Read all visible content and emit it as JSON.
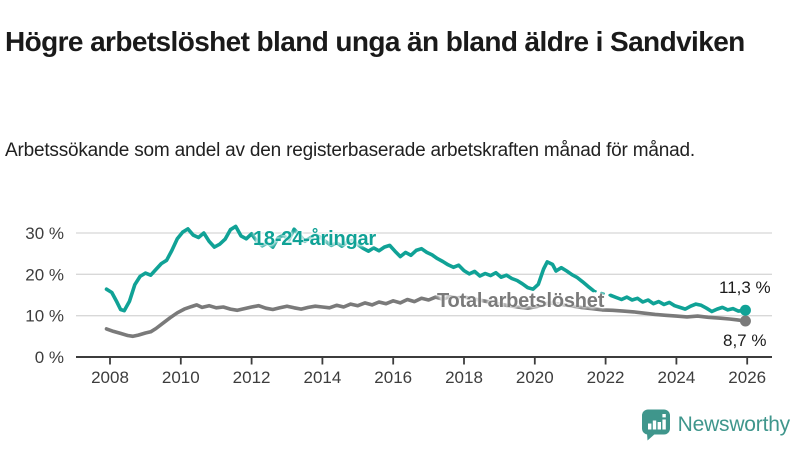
{
  "header": {
    "title": "Högre arbetslöshet bland unga än bland äldre i Sandviken",
    "subtitle": "Arbetssökande som andel av den registerbaserade arbetskraften månad för månad."
  },
  "chart_data": {
    "type": "line",
    "title": "Högre arbetslöshet bland unga än bland äldre i Sandviken",
    "subtitle": "Arbetssökande som andel av den registerbaserade arbetskraften månad för månad.",
    "xlabel": "",
    "ylabel": "",
    "grid": true,
    "legend_position": "inline-labels",
    "x_domain": [
      2007.9,
      2026.45
    ],
    "y_domain": [
      0,
      33
    ],
    "y_ticks": [
      {
        "value": 0,
        "label": "0 %"
      },
      {
        "value": 10,
        "label": "10 %"
      },
      {
        "value": 20,
        "label": "20 %"
      },
      {
        "value": 30,
        "label": "30 %"
      }
    ],
    "x_ticks": [
      {
        "value": 2008,
        "label": "2008"
      },
      {
        "value": 2010,
        "label": "2010"
      },
      {
        "value": 2012,
        "label": "2012"
      },
      {
        "value": 2014,
        "label": "2014"
      },
      {
        "value": 2016,
        "label": "2016"
      },
      {
        "value": 2018,
        "label": "2018"
      },
      {
        "value": 2020,
        "label": "2020"
      },
      {
        "value": 2022,
        "label": "2022"
      },
      {
        "value": 2024,
        "label": "2024"
      },
      {
        "value": 2026,
        "label": "2026"
      }
    ],
    "colors": {
      "youth": "#10a296",
      "total": "#7a7a7a",
      "gridline": "#d8d8d8",
      "axis": "#3c3c3c",
      "tick_label": "#3d3d3d",
      "value_label": "#1b1b1b"
    },
    "series": [
      {
        "id": "youth",
        "name": "18-24-åringar",
        "color": "#10a296",
        "end_value": 11.3,
        "end_value_label": "11,3 %",
        "segments": [
          {
            "style": "solid",
            "points": [
              [
                2007.9,
                16.4
              ],
              [
                2008.05,
                15.6
              ],
              [
                2008.2,
                13.2
              ],
              [
                2008.3,
                11.5
              ],
              [
                2008.4,
                11.2
              ],
              [
                2008.55,
                13.5
              ],
              [
                2008.7,
                17.5
              ],
              [
                2008.85,
                19.5
              ],
              [
                2009.0,
                20.3
              ],
              [
                2009.15,
                19.8
              ],
              [
                2009.3,
                21.2
              ],
              [
                2009.45,
                22.6
              ],
              [
                2009.6,
                23.4
              ],
              [
                2009.75,
                25.8
              ],
              [
                2009.9,
                28.6
              ],
              [
                2010.05,
                30.2
              ],
              [
                2010.2,
                31.0
              ],
              [
                2010.35,
                29.5
              ],
              [
                2010.5,
                28.9
              ],
              [
                2010.65,
                30.0
              ],
              [
                2010.8,
                28.0
              ],
              [
                2010.95,
                26.6
              ],
              [
                2011.1,
                27.3
              ],
              [
                2011.25,
                28.5
              ],
              [
                2011.4,
                30.8
              ],
              [
                2011.55,
                31.6
              ],
              [
                2011.7,
                29.3
              ],
              [
                2011.85,
                28.6
              ],
              [
                2012.0,
                29.8
              ],
              [
                2012.15,
                28.0
              ],
              [
                2012.3,
                26.9
              ],
              [
                2012.45,
                27.6
              ],
              [
                2012.6,
                26.6
              ],
              [
                2012.75,
                28.8
              ],
              [
                2012.9,
                29.5
              ],
              [
                2013.05,
                28.3
              ],
              [
                2013.2,
                30.9
              ],
              [
                2013.35,
                29.6
              ],
              [
                2013.5,
                28.0
              ],
              [
                2013.65,
                28.8
              ],
              [
                2013.8,
                29.6
              ],
              [
                2013.95,
                28.9
              ],
              [
                2014.1,
                27.9
              ],
              [
                2014.25,
                27.0
              ],
              [
                2014.4,
                27.6
              ],
              [
                2014.55,
                26.8
              ],
              [
                2014.7,
                27.8
              ],
              [
                2014.85,
                28.2
              ],
              [
                2015.0,
                27.2
              ],
              [
                2015.15,
                26.3
              ],
              [
                2015.3,
                25.6
              ],
              [
                2015.45,
                26.4
              ],
              [
                2015.6,
                25.7
              ],
              [
                2015.75,
                26.6
              ],
              [
                2015.9,
                27.0
              ],
              [
                2016.05,
                25.6
              ],
              [
                2016.2,
                24.3
              ],
              [
                2016.35,
                25.3
              ],
              [
                2016.5,
                24.6
              ],
              [
                2016.65,
                25.8
              ],
              [
                2016.8,
                26.2
              ],
              [
                2016.95,
                25.3
              ],
              [
                2017.1,
                24.7
              ],
              [
                2017.25,
                23.8
              ],
              [
                2017.4,
                23.1
              ],
              [
                2017.55,
                22.3
              ],
              [
                2017.7,
                21.7
              ],
              [
                2017.85,
                22.2
              ],
              [
                2018.0,
                20.9
              ],
              [
                2018.15,
                20.1
              ],
              [
                2018.3,
                20.7
              ],
              [
                2018.45,
                19.6
              ],
              [
                2018.6,
                20.2
              ],
              [
                2018.75,
                19.7
              ],
              [
                2018.9,
                20.4
              ],
              [
                2019.05,
                19.3
              ],
              [
                2019.2,
                19.8
              ],
              [
                2019.35,
                19.0
              ],
              [
                2019.5,
                18.5
              ],
              [
                2019.65,
                17.7
              ],
              [
                2019.8,
                16.8
              ],
              [
                2019.95,
                16.4
              ],
              [
                2020.1,
                17.6
              ],
              [
                2020.25,
                21.3
              ],
              [
                2020.35,
                23.0
              ],
              [
                2020.5,
                22.4
              ],
              [
                2020.6,
                20.8
              ],
              [
                2020.75,
                21.6
              ],
              [
                2020.9,
                20.8
              ],
              [
                2021.05,
                19.9
              ],
              [
                2021.2,
                19.2
              ],
              [
                2021.35,
                18.2
              ],
              [
                2021.5,
                17.1
              ],
              [
                2021.65,
                16.1
              ]
            ]
          },
          {
            "style": "dashed",
            "points": [
              [
                2021.65,
                16.1
              ],
              [
                2021.8,
                15.7
              ],
              [
                2022.0,
                15.2
              ],
              [
                2022.15,
                14.9
              ]
            ]
          },
          {
            "style": "solid",
            "points": [
              [
                2022.15,
                14.9
              ],
              [
                2022.3,
                14.4
              ],
              [
                2022.45,
                13.9
              ],
              [
                2022.6,
                14.5
              ],
              [
                2022.75,
                13.8
              ],
              [
                2022.9,
                14.2
              ],
              [
                2023.05,
                13.3
              ],
              [
                2023.2,
                13.8
              ],
              [
                2023.35,
                12.9
              ],
              [
                2023.5,
                13.4
              ],
              [
                2023.65,
                12.7
              ],
              [
                2023.8,
                13.2
              ],
              [
                2023.95,
                12.4
              ],
              [
                2024.1,
                12.0
              ],
              [
                2024.25,
                11.6
              ],
              [
                2024.4,
                12.3
              ],
              [
                2024.55,
                12.8
              ],
              [
                2024.7,
                12.5
              ],
              [
                2024.85,
                11.8
              ],
              [
                2025.0,
                11.0
              ],
              [
                2025.15,
                11.6
              ],
              [
                2025.3,
                12.0
              ],
              [
                2025.45,
                11.4
              ],
              [
                2025.6,
                11.7
              ],
              [
                2025.75,
                11.1
              ],
              [
                2025.95,
                11.3
              ]
            ]
          }
        ]
      },
      {
        "id": "total",
        "name": "Total arbetslöshet",
        "color": "#7a7a7a",
        "end_value": 8.7,
        "end_value_label": "8,7 %",
        "segments": [
          {
            "style": "solid",
            "points": [
              [
                2007.9,
                6.8
              ],
              [
                2008.1,
                6.2
              ],
              [
                2008.3,
                5.7
              ],
              [
                2008.5,
                5.2
              ],
              [
                2008.65,
                5.0
              ],
              [
                2008.8,
                5.3
              ],
              [
                2009.0,
                5.8
              ],
              [
                2009.15,
                6.1
              ],
              [
                2009.3,
                6.9
              ],
              [
                2009.5,
                8.2
              ],
              [
                2009.7,
                9.5
              ],
              [
                2009.9,
                10.7
              ],
              [
                2010.1,
                11.6
              ],
              [
                2010.3,
                12.2
              ],
              [
                2010.45,
                12.6
              ],
              [
                2010.6,
                12.0
              ],
              [
                2010.8,
                12.4
              ],
              [
                2011.0,
                11.9
              ],
              [
                2011.2,
                12.1
              ],
              [
                2011.4,
                11.6
              ],
              [
                2011.6,
                11.3
              ],
              [
                2011.8,
                11.7
              ],
              [
                2012.0,
                12.1
              ],
              [
                2012.2,
                12.4
              ],
              [
                2012.4,
                11.8
              ],
              [
                2012.6,
                11.5
              ],
              [
                2012.8,
                11.9
              ],
              [
                2013.0,
                12.3
              ],
              [
                2013.2,
                11.9
              ],
              [
                2013.4,
                11.6
              ],
              [
                2013.6,
                12.0
              ],
              [
                2013.8,
                12.3
              ],
              [
                2014.0,
                12.1
              ],
              [
                2014.2,
                11.9
              ],
              [
                2014.4,
                12.5
              ],
              [
                2014.6,
                12.1
              ],
              [
                2014.8,
                12.8
              ],
              [
                2015.0,
                12.4
              ],
              [
                2015.2,
                13.1
              ],
              [
                2015.4,
                12.6
              ],
              [
                2015.6,
                13.3
              ],
              [
                2015.8,
                12.9
              ],
              [
                2016.0,
                13.6
              ],
              [
                2016.2,
                13.1
              ],
              [
                2016.4,
                13.9
              ],
              [
                2016.6,
                13.4
              ],
              [
                2016.8,
                14.2
              ],
              [
                2017.0,
                13.8
              ],
              [
                2017.2,
                14.5
              ],
              [
                2017.4,
                14.0
              ],
              [
                2017.6,
                14.6
              ],
              [
                2017.8,
                14.3
              ],
              [
                2018.0,
                14.5
              ],
              [
                2018.3,
                14.0
              ],
              [
                2018.6,
                13.5
              ],
              [
                2018.9,
                13.0
              ],
              [
                2019.2,
                12.5
              ],
              [
                2019.5,
                12.1
              ],
              [
                2019.8,
                11.8
              ],
              [
                2020.1,
                12.3
              ],
              [
                2020.4,
                13.1
              ],
              [
                2020.7,
                12.8
              ],
              [
                2021.0,
                12.4
              ],
              [
                2021.3,
                12.0
              ],
              [
                2021.6,
                11.7
              ],
              [
                2021.9,
                11.4
              ],
              [
                2022.2,
                11.3
              ],
              [
                2022.5,
                11.1
              ],
              [
                2022.8,
                10.9
              ],
              [
                2023.1,
                10.6
              ],
              [
                2023.4,
                10.3
              ],
              [
                2023.7,
                10.1
              ],
              [
                2024.0,
                9.9
              ],
              [
                2024.3,
                9.7
              ],
              [
                2024.6,
                9.9
              ],
              [
                2024.9,
                9.6
              ],
              [
                2025.2,
                9.4
              ],
              [
                2025.5,
                9.2
              ],
              [
                2025.7,
                9.0
              ],
              [
                2025.95,
                8.7
              ]
            ]
          }
        ]
      }
    ]
  },
  "footer": {
    "brand": "Newsworthy",
    "brand_color": "#3f968c",
    "logo_icon": "bar-chart-speech-bubble"
  }
}
